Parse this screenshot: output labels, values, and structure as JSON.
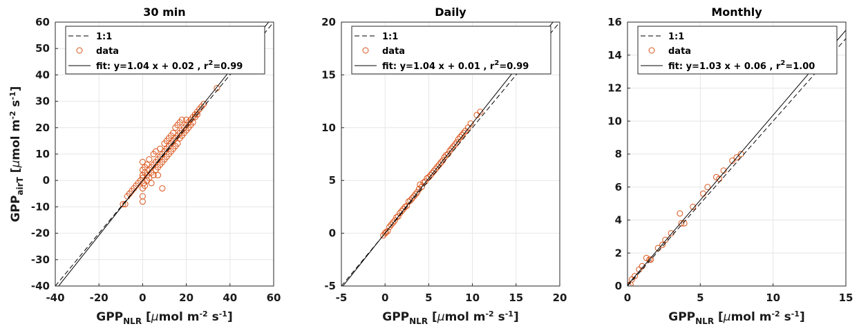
{
  "colors": {
    "data": "#D95319",
    "fit": "#000000",
    "one_to_one": "#000000",
    "grid": "#e6e6e6"
  },
  "chart_data": [
    {
      "type": "scatter",
      "title": "30 min",
      "xlabel": {
        "main": "GPP",
        "sub": "NLR",
        "unit_pre": " [",
        "mu": "μ",
        "unit_a": "mol m",
        "exp1": "-2",
        "unit_b": " s",
        "exp2": "-1",
        "unit_post": "]"
      },
      "ylabel": {
        "main": "GPP",
        "sub": "airT",
        "unit_pre": " [",
        "mu": "μ",
        "unit_a": "mol m",
        "exp1": "-2",
        "unit_b": " s",
        "exp2": "-1",
        "unit_post": "]"
      },
      "xlim": [
        -40,
        60
      ],
      "ylim": [
        -40,
        60
      ],
      "xticks": [
        "-40",
        "-20",
        "0",
        "20",
        "40",
        "60"
      ],
      "yticks": [
        "-40",
        "-30",
        "-20",
        "-10",
        "0",
        "10",
        "20",
        "30",
        "40",
        "50",
        "60"
      ],
      "grid": true,
      "legend_position": "top-left",
      "legend": {
        "line1": "1:1",
        "data": "data",
        "fit_text": "fit: y=1.04 x + 0.02 , r",
        "fit_exp": "2",
        "fit_tail": "=0.99"
      },
      "fit": {
        "slope": 1.04,
        "intercept": 0.02,
        "r2": 0.99
      },
      "points": [
        [
          -9,
          -9
        ],
        [
          -8,
          -9
        ],
        [
          -7,
          -6
        ],
        [
          -6,
          -5
        ],
        [
          -5,
          -4
        ],
        [
          -4,
          -3
        ],
        [
          -3,
          -2
        ],
        [
          -2,
          -1
        ],
        [
          -1,
          0
        ],
        [
          0,
          1
        ],
        [
          0,
          -3
        ],
        [
          0,
          -6
        ],
        [
          0,
          -8
        ],
        [
          0,
          4
        ],
        [
          0,
          7
        ],
        [
          0,
          2
        ],
        [
          0.5,
          -1
        ],
        [
          1,
          5
        ],
        [
          1,
          -2
        ],
        [
          1,
          3
        ],
        [
          2,
          2
        ],
        [
          2,
          6
        ],
        [
          2,
          0
        ],
        [
          3,
          4
        ],
        [
          3,
          1
        ],
        [
          3,
          8
        ],
        [
          4,
          5
        ],
        [
          4,
          3
        ],
        [
          4,
          -1
        ],
        [
          5,
          6
        ],
        [
          5,
          10
        ],
        [
          5,
          2
        ],
        [
          6,
          7
        ],
        [
          6,
          4
        ],
        [
          6,
          11
        ],
        [
          7,
          8
        ],
        [
          7,
          5
        ],
        [
          7,
          2
        ],
        [
          8,
          9
        ],
        [
          8,
          6
        ],
        [
          8,
          12
        ],
        [
          9,
          10
        ],
        [
          9,
          7
        ],
        [
          9,
          -3
        ],
        [
          10,
          11
        ],
        [
          10,
          8
        ],
        [
          10,
          14
        ],
        [
          11,
          12
        ],
        [
          11,
          9
        ],
        [
          11,
          15
        ],
        [
          12,
          13
        ],
        [
          12,
          10
        ],
        [
          12,
          16
        ],
        [
          13,
          14
        ],
        [
          13,
          11
        ],
        [
          13,
          17
        ],
        [
          14,
          15
        ],
        [
          14,
          12
        ],
        [
          14,
          18
        ],
        [
          15,
          16
        ],
        [
          15,
          13
        ],
        [
          15,
          20
        ],
        [
          16,
          17
        ],
        [
          16,
          14
        ],
        [
          16,
          21
        ],
        [
          17,
          18
        ],
        [
          17,
          16
        ],
        [
          17,
          22
        ],
        [
          18,
          19
        ],
        [
          18,
          17
        ],
        [
          18,
          23
        ],
        [
          19,
          20
        ],
        [
          19,
          18
        ],
        [
          20,
          21
        ],
        [
          20,
          19
        ],
        [
          20,
          23
        ],
        [
          21,
          22
        ],
        [
          21,
          20
        ],
        [
          22,
          23
        ],
        [
          22,
          21
        ],
        [
          23,
          24
        ],
        [
          23,
          22
        ],
        [
          24,
          25
        ],
        [
          24,
          24
        ],
        [
          25,
          26
        ],
        [
          25,
          25
        ],
        [
          26,
          27
        ],
        [
          27,
          28
        ],
        [
          28,
          29
        ],
        [
          34,
          35
        ]
      ]
    },
    {
      "type": "scatter",
      "title": "Daily",
      "xlabel": {
        "main": "GPP",
        "sub": "NLR",
        "unit_pre": " [",
        "mu": "μ",
        "unit_a": "mol m",
        "exp1": "-2",
        "unit_b": " s",
        "exp2": "-1",
        "unit_post": "]"
      },
      "ylabel": null,
      "xlim": [
        -5,
        20
      ],
      "ylim": [
        -5,
        20
      ],
      "xticks": [
        "-5",
        "0",
        "5",
        "10",
        "15",
        "20"
      ],
      "yticks": [
        "-5",
        "0",
        "5",
        "10",
        "15",
        "20"
      ],
      "grid": true,
      "legend_position": "top-left",
      "legend": {
        "line1": "1:1",
        "data": "data",
        "fit_text": "fit: y=1.04 x + 0.01 , r",
        "fit_exp": "2",
        "fit_tail": "=0.99"
      },
      "fit": {
        "slope": 1.04,
        "intercept": 0.01,
        "r2": 0.99
      },
      "points": [
        [
          -0.2,
          -0.2
        ],
        [
          0,
          0
        ],
        [
          0.1,
          0.1
        ],
        [
          0.3,
          0.2
        ],
        [
          0.5,
          0.6
        ],
        [
          0.7,
          0.8
        ],
        [
          0.9,
          1.0
        ],
        [
          1.1,
          1.2
        ],
        [
          1.3,
          1.5
        ],
        [
          1.5,
          1.6
        ],
        [
          1.7,
          1.9
        ],
        [
          1.9,
          2.1
        ],
        [
          2.1,
          2.3
        ],
        [
          2.3,
          2.5
        ],
        [
          2.5,
          2.6
        ],
        [
          2.7,
          3.0
        ],
        [
          2.9,
          3.1
        ],
        [
          3.1,
          3.3
        ],
        [
          3.3,
          3.5
        ],
        [
          3.5,
          3.7
        ],
        [
          3.7,
          3.9
        ],
        [
          3.9,
          4.2
        ],
        [
          4.0,
          4.6
        ],
        [
          4.2,
          4.4
        ],
        [
          4.4,
          4.8
        ],
        [
          4.6,
          4.9
        ],
        [
          4.8,
          5.2
        ],
        [
          5.0,
          5.3
        ],
        [
          5.2,
          5.5
        ],
        [
          5.4,
          5.7
        ],
        [
          5.6,
          5.9
        ],
        [
          5.8,
          6.1
        ],
        [
          6.0,
          6.3
        ],
        [
          6.2,
          6.5
        ],
        [
          6.4,
          6.7
        ],
        [
          6.6,
          6.9
        ],
        [
          6.8,
          7.2
        ],
        [
          7.0,
          7.4
        ],
        [
          7.2,
          7.5
        ],
        [
          7.4,
          7.8
        ],
        [
          7.6,
          8.0
        ],
        [
          7.8,
          8.2
        ],
        [
          8.0,
          8.4
        ],
        [
          8.2,
          8.6
        ],
        [
          8.4,
          8.9
        ],
        [
          8.6,
          9.1
        ],
        [
          8.8,
          9.3
        ],
        [
          9.0,
          9.5
        ],
        [
          9.2,
          9.7
        ],
        [
          9.5,
          10.0
        ],
        [
          9.8,
          10.4
        ],
        [
          10.5,
          11.2
        ],
        [
          10.9,
          11.5
        ]
      ]
    },
    {
      "type": "scatter",
      "title": "Monthly",
      "xlabel": {
        "main": "GPP",
        "sub": "NLR",
        "unit_pre": " [",
        "mu": "μ",
        "unit_a": "mol m",
        "exp1": "-2",
        "unit_b": " s",
        "exp2": "-1",
        "unit_post": "]"
      },
      "ylabel": null,
      "xlim": [
        0,
        15
      ],
      "ylim": [
        0,
        16
      ],
      "xticks": [
        "0",
        "5",
        "10",
        "15"
      ],
      "yticks": [
        "0",
        "2",
        "4",
        "6",
        "8",
        "10",
        "12",
        "14",
        "16"
      ],
      "grid": true,
      "legend_position": "top-left",
      "legend": {
        "line1": "1:1",
        "data": "data",
        "fit_text": "fit: y=1.03 x + 0.06 , r",
        "fit_exp": "2",
        "fit_tail": "=1.00"
      },
      "fit": {
        "slope": 1.03,
        "intercept": 0.06,
        "r2": 1.0
      },
      "points": [
        [
          0.05,
          0.05
        ],
        [
          0.2,
          0.1
        ],
        [
          0.3,
          0.4
        ],
        [
          0.5,
          0.6
        ],
        [
          0.8,
          1.0
        ],
        [
          1.0,
          1.2
        ],
        [
          1.3,
          1.7
        ],
        [
          1.5,
          1.6
        ],
        [
          1.6,
          1.6
        ],
        [
          2.1,
          2.3
        ],
        [
          2.4,
          2.5
        ],
        [
          2.6,
          2.8
        ],
        [
          3.0,
          3.2
        ],
        [
          3.6,
          4.4
        ],
        [
          3.7,
          3.8
        ],
        [
          3.9,
          3.8
        ],
        [
          4.5,
          4.8
        ],
        [
          5.2,
          5.6
        ],
        [
          5.5,
          6.0
        ],
        [
          6.1,
          6.6
        ],
        [
          6.3,
          6.5
        ],
        [
          6.6,
          7.0
        ],
        [
          7.2,
          7.6
        ],
        [
          7.5,
          7.8
        ],
        [
          7.8,
          8.0
        ]
      ]
    }
  ]
}
